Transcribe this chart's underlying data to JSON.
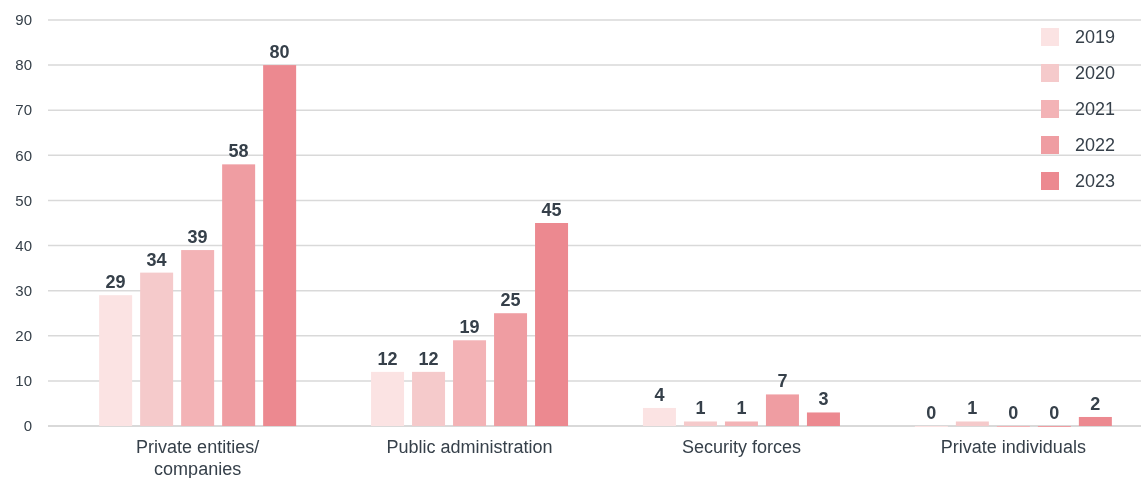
{
  "chart_data": {
    "type": "bar",
    "categories": [
      "Private entities/ companies",
      "Public administration",
      "Security forces",
      "Private individuals"
    ],
    "series": [
      {
        "name": "2019",
        "color": "#fbe3e3",
        "values": [
          29,
          12,
          4,
          0
        ]
      },
      {
        "name": "2020",
        "color": "#f5cacb",
        "values": [
          34,
          12,
          1,
          1
        ]
      },
      {
        "name": "2021",
        "color": "#f3b3b6",
        "values": [
          39,
          19,
          1,
          0
        ]
      },
      {
        "name": "2022",
        "color": "#ef9da2",
        "values": [
          58,
          25,
          7,
          0
        ]
      },
      {
        "name": "2023",
        "color": "#ec8990",
        "values": [
          80,
          45,
          3,
          2
        ]
      }
    ],
    "ylim": [
      0,
      90
    ],
    "yticks": [
      0,
      10,
      20,
      30,
      40,
      50,
      60,
      70,
      80,
      90
    ],
    "grid": "y",
    "legend": "top right",
    "data_labels": true
  }
}
